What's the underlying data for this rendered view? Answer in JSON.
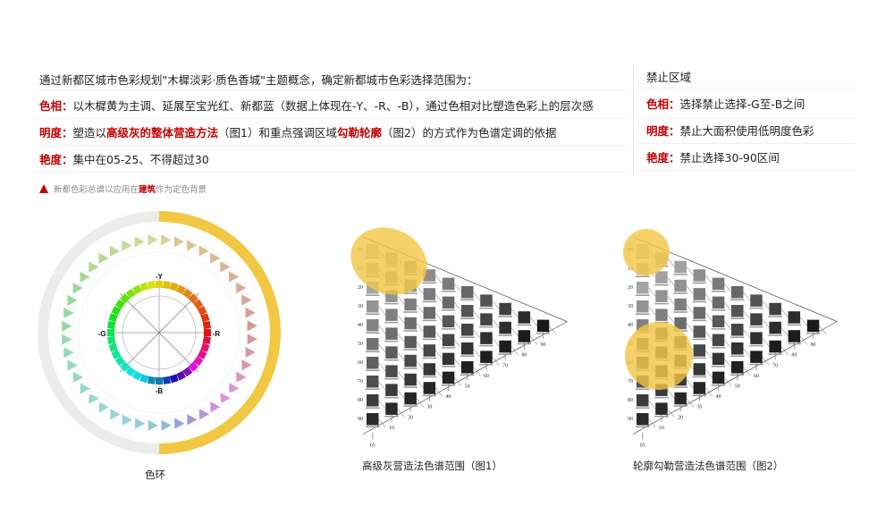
{
  "intro": {
    "line1": "通过新都区城市色彩规划\"木樨淡彩·质色香城\"主题概念，确定新都城市色彩选择范围为：",
    "hue": {
      "label": "色相：",
      "text": "以木樨黄为主调、延展至宝光红、新都蓝（数据上体现在-Y、-R、-B），通过色相对比塑造色彩上的层次感"
    },
    "lightness": {
      "label": "明度：",
      "text_a": "塑造以",
      "highlight_a": "高级灰的整体营造方法",
      "text_b": "（图1）和重点强调区域",
      "highlight_b": "勾勒轮廓",
      "text_c": "（图2）的方式作为色谱定调的依据"
    },
    "chroma": {
      "label": "艳度：",
      "text": "集中在05-25、不得超过30"
    },
    "note": {
      "text_a": "新都色彩总谱以应用在",
      "highlight": "建筑",
      "text_b": "作为定色背景"
    }
  },
  "forbidden": {
    "title": "禁止区域",
    "hue": {
      "label": "色相：",
      "text": "选择禁止选择-G至-B之间"
    },
    "lightness": {
      "label": "明度：",
      "text": "禁止大面积使用低明度色彩"
    },
    "chroma": {
      "label": "艳度：",
      "text": "禁止选择30-90区间"
    }
  },
  "color_wheel": {
    "caption": "色环",
    "axis_labels": {
      "top": "-Y",
      "right": "-R",
      "bottom": "-B",
      "left": "-G"
    },
    "selected_half_color": "#f2c744",
    "unselected_half_color": "#ececec"
  },
  "figure1": {
    "caption": "高级灰营造法色谱范围（图1）",
    "row_labels": [
      "05",
      "10",
      "20",
      "30",
      "40",
      "50",
      "60",
      "70",
      "80",
      "90"
    ],
    "column_labels": [
      "05",
      "10",
      "20",
      "30",
      "40",
      "50",
      "60",
      "70",
      "80",
      "90"
    ],
    "highlight": "05-20 blackness, low chroma"
  },
  "figure2": {
    "caption": "轮廓勾勒营造法色谱范围（图2）",
    "row_labels": [
      "05",
      "10",
      "20",
      "30",
      "40",
      "50",
      "60",
      "70",
      "80",
      "90"
    ],
    "column_labels": [
      "05",
      "10",
      "20",
      "30",
      "40",
      "50",
      "60",
      "70",
      "80",
      "90"
    ],
    "highlight": "05-10 and 50-70 blackness"
  },
  "colors": {
    "accent_red": "#c00000",
    "highlight_yellow": "#f2c744"
  }
}
